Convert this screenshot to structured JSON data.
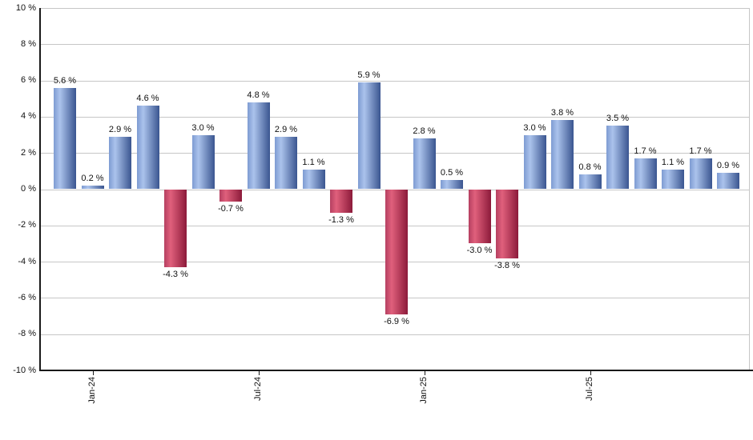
{
  "chart_data": {
    "type": "bar",
    "title": "",
    "xlabel": "",
    "ylabel": "",
    "unit": "%",
    "ylim": [
      -10,
      10
    ],
    "y_step": 2,
    "grid": true,
    "legend": false,
    "values": [
      5.6,
      0.2,
      2.9,
      4.6,
      -4.3,
      3.0,
      -0.7,
      4.8,
      2.9,
      1.1,
      -1.3,
      5.9,
      -6.9,
      2.8,
      0.5,
      -3.0,
      -3.8,
      3.0,
      3.8,
      0.8,
      3.5,
      1.7,
      1.1,
      1.7,
      0.9
    ],
    "value_labels": [
      "5.6 %",
      "0.2 %",
      "2.9 %",
      "4.6 %",
      "-4.3 %",
      "3.0 %",
      "-0.7 %",
      "4.8 %",
      "2.9 %",
      "1.1 %",
      "-1.3 %",
      "5.9 %",
      "-6.9 %",
      "2.8 %",
      "0.5 %",
      "-3.0 %",
      "-3.8 %",
      "3.0 %",
      "3.8 %",
      "0.8 %",
      "3.5 %",
      "1.7 %",
      "1.1 %",
      "1.7 %",
      "0.9 %"
    ],
    "x_ticks": [
      {
        "label": "Jan-24",
        "bar_index": 1
      },
      {
        "label": "Jul-24",
        "bar_index": 7
      },
      {
        "label": "Jan-25",
        "bar_index": 13
      },
      {
        "label": "Jul-25",
        "bar_index": 19
      }
    ],
    "y_tick_labels": [
      "10 %",
      "8 %",
      "6 %",
      "4 %",
      "2 %",
      "0 %",
      "-2 %",
      "-4 %",
      "-6 %",
      "-8 %",
      "-10 %"
    ],
    "colors": {
      "positive_bar_gradient": [
        "#7e9bd2",
        "#abc3ec",
        "#3a5590"
      ],
      "negative_bar_gradient": [
        "#b54061",
        "#e0607c",
        "#8c1a3a"
      ],
      "gridline": "#c6c6c6",
      "axis": "#1a1a1a",
      "text": "#111111",
      "background": "#ffffff"
    }
  }
}
